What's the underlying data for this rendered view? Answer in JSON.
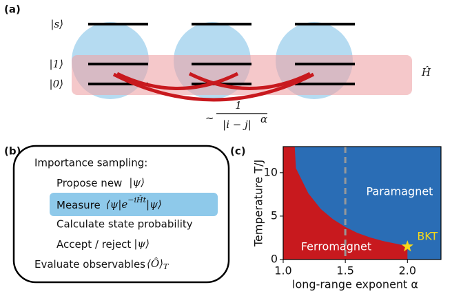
{
  "panel_a": {
    "label": "(a)",
    "states": [
      "|s⟩",
      "|1⟩",
      "|0⟩"
    ],
    "hamiltonian": "Ĥ",
    "coupling": {
      "prefix": "~",
      "numerator": "1",
      "denominator": "|i − j|",
      "exponent": "α"
    }
  },
  "panel_b": {
    "label": "(b)",
    "heading": "Importance sampling:",
    "propose": {
      "text": "Propose new",
      "math": "|ψ⟩"
    },
    "measure": {
      "text": "Measure",
      "math": "⟨ψ|e",
      "exponent": "−iĤt",
      "math_end": "|ψ⟩"
    },
    "calculate": "Calculate state probability",
    "accept": {
      "text": "Accept / reject",
      "math": "|ψ⟩"
    },
    "evaluate": {
      "text": "Evaluate observables",
      "math": "⟨Ô⟩",
      "subscript": "T"
    }
  },
  "panel_c": {
    "label": "(c)"
  },
  "chart_data": {
    "type": "phase",
    "xlabel": "long-range exponent α",
    "ylabel": "Temperature T/J",
    "x": [
      1.09,
      1.1,
      1.2,
      1.3,
      1.4,
      1.5,
      1.6,
      1.7,
      1.8,
      1.9,
      2.0
    ],
    "values": [
      13,
      10.5,
      7.6,
      5.8,
      4.6,
      3.7,
      3.0,
      2.5,
      2.1,
      1.8,
      1.5
    ],
    "xlim": [
      1.0,
      2.27
    ],
    "ylim": [
      0,
      13
    ],
    "xticks": [
      {
        "value": 1,
        "label": "1.0"
      },
      1.5,
      {
        "value": 2,
        "label": "2.0"
      }
    ],
    "yticks": [
      0,
      5,
      10
    ],
    "critical_x": 1.5,
    "bkt": {
      "label": "BKT",
      "x": 2.0,
      "y": 1.5,
      "color": "#f7d91a"
    },
    "regions": [
      {
        "name": "Paramagnet",
        "color": "#2a6db5"
      },
      {
        "name": "Ferromagnet",
        "color": "#c8191e"
      }
    ]
  }
}
